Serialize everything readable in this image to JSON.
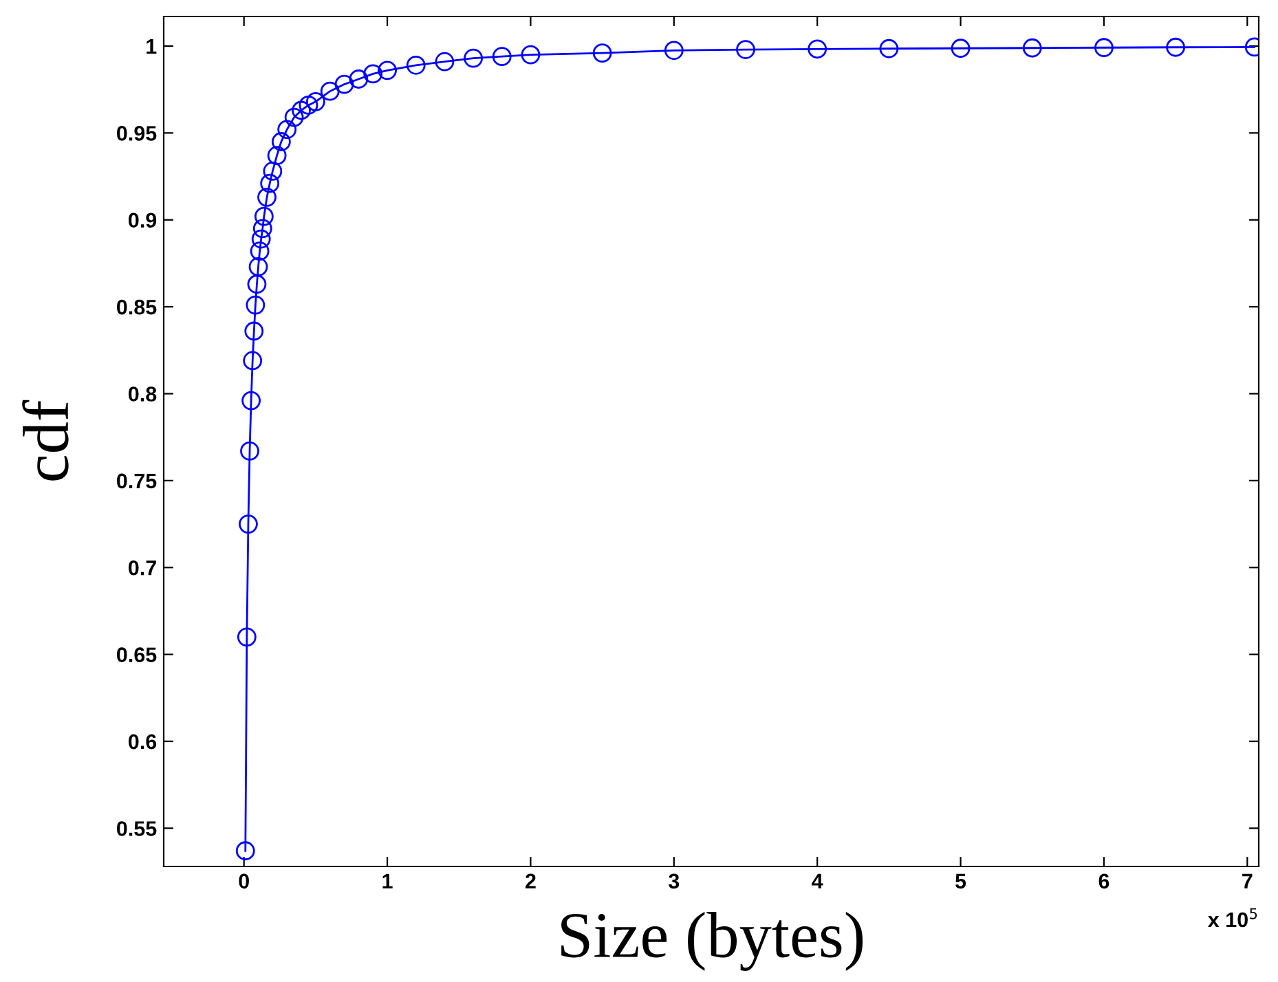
{
  "chart_data": {
    "type": "line",
    "xlabel": "Size (bytes)",
    "ylabel": "cdf",
    "annotations": [
      "x 10$^{5}$"
    ],
    "series": [
      {
        "color": "#0000ff",
        "x": [
          0.01,
          0.02,
          0.03,
          0.04,
          0.05,
          0.06,
          0.07,
          0.08,
          0.09,
          0.1,
          0.11,
          0.12,
          0.13,
          0.14,
          0.16,
          0.18,
          0.2,
          0.23,
          0.26,
          0.3,
          0.35,
          0.4,
          0.45,
          0.5,
          0.6,
          0.7,
          0.8,
          0.9,
          1.0,
          1.2,
          1.4,
          1.6,
          1.8,
          2.0,
          2.5,
          3.0,
          3.5,
          4.0,
          4.5,
          5.0,
          5.5,
          6.0,
          6.5,
          7.05
        ],
        "values": [
          0.537,
          0.66,
          0.725,
          0.767,
          0.796,
          0.819,
          0.836,
          0.851,
          0.863,
          0.873,
          0.882,
          0.889,
          0.895,
          0.902,
          0.913,
          0.921,
          0.928,
          0.937,
          0.945,
          0.952,
          0.959,
          0.963,
          0.966,
          0.968,
          0.974,
          0.978,
          0.981,
          0.984,
          0.986,
          0.989,
          0.991,
          0.993,
          0.994,
          0.995,
          0.996,
          0.9975,
          0.998,
          0.9983,
          0.9985,
          0.9987,
          0.9989,
          0.9991,
          0.9993,
          0.9994
        ]
      }
    ],
    "marker": "circle",
    "line_style": "solid",
    "grid": false,
    "legend": false,
    "xlim": [
      -0.56,
      7.08
    ],
    "xticks": [
      0,
      1,
      2,
      3,
      4,
      5,
      6,
      7
    ],
    "ylim": [
      0.528,
      1.017
    ],
    "yticks": [
      0.55,
      0.6,
      0.65,
      0.7,
      0.75,
      0.8,
      0.85,
      0.9,
      0.95,
      1
    ]
  }
}
